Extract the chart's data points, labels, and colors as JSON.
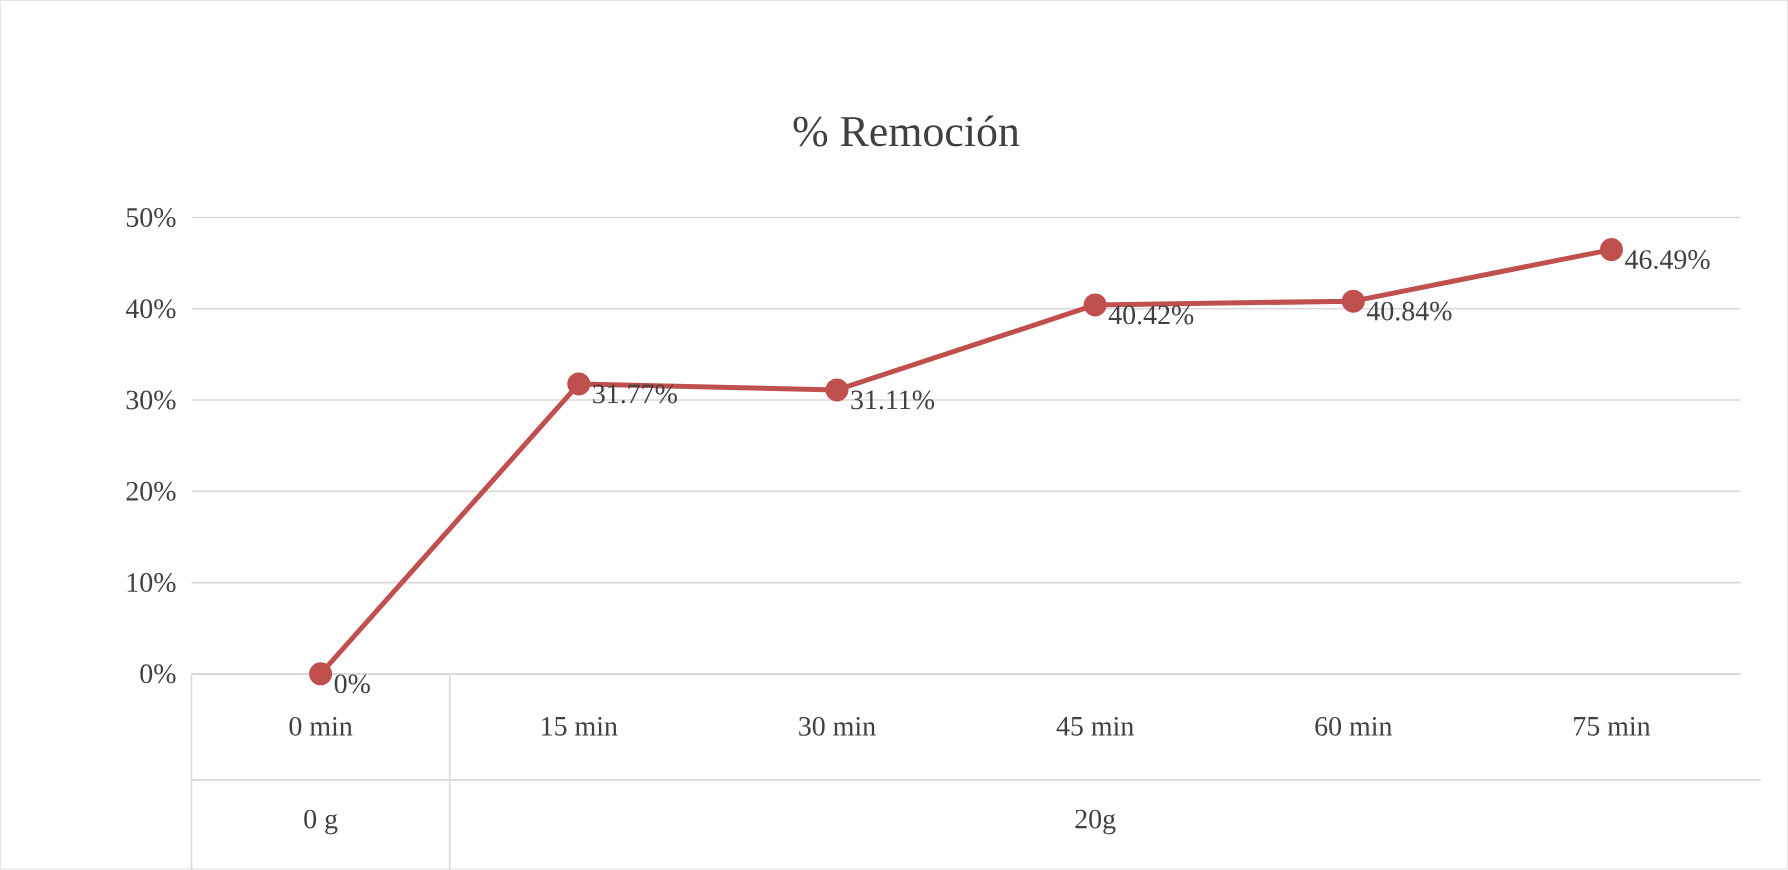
{
  "chart_data": {
    "type": "line",
    "title": "% Remoción",
    "categories": [
      "0 min",
      "15  min",
      "30 min",
      "45 min",
      "60 min",
      "75 min"
    ],
    "series": [
      {
        "color": "#c0504d",
        "values": [
          0,
          31.77,
          31.11,
          40.42,
          40.84,
          46.49
        ],
        "value_labels": [
          "0%",
          "31.77%",
          "31.11%",
          "40.42%",
          "40.84%",
          "46.49%"
        ]
      }
    ],
    "ylim": [
      0,
      50
    ],
    "yticks": [
      {
        "value": 0,
        "label": "0%"
      },
      {
        "value": 10,
        "label": "10%"
      },
      {
        "value": 20,
        "label": "20%"
      },
      {
        "value": 30,
        "label": "30%"
      },
      {
        "value": 40,
        "label": "40%"
      },
      {
        "value": 50,
        "label": "50%"
      }
    ],
    "grid": "y",
    "marker": "circle",
    "line_style": "solid",
    "annotations": [
      "0 g",
      "20g"
    ]
  }
}
